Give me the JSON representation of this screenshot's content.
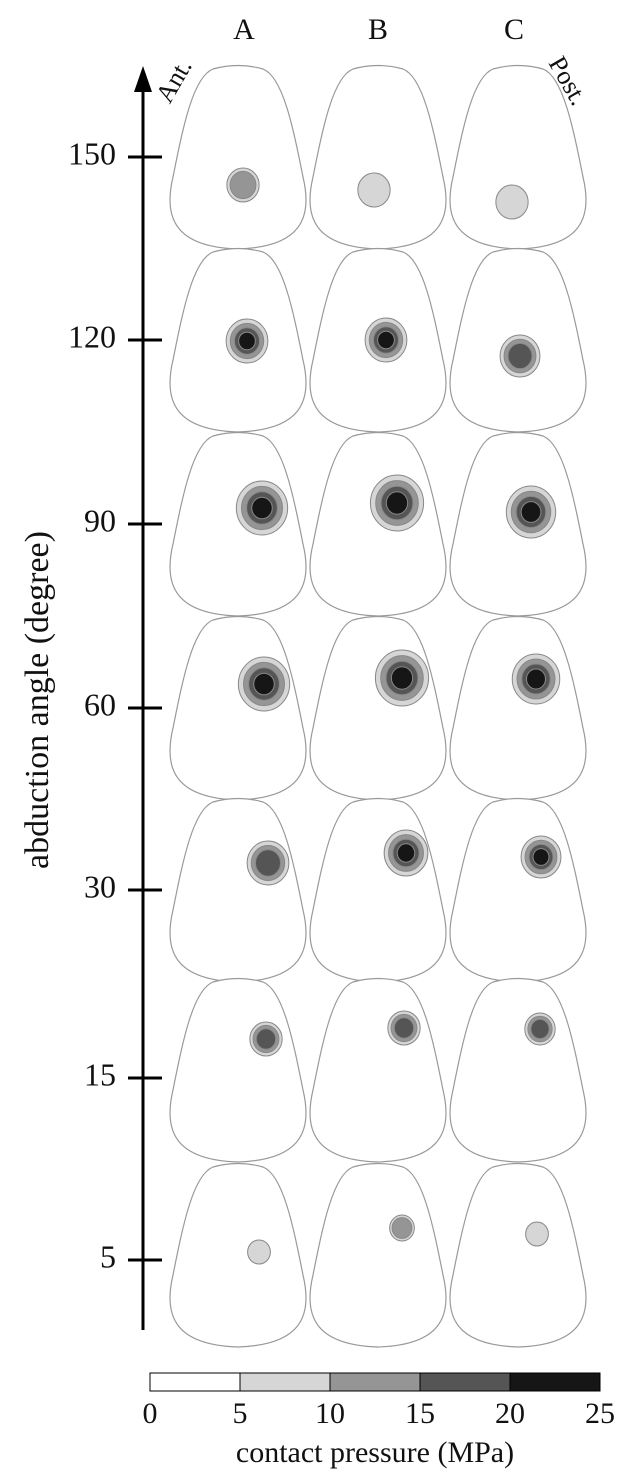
{
  "columns": [
    "A",
    "B",
    "C"
  ],
  "labels": {
    "anterior": "Ant.",
    "posterior": "Post."
  },
  "axis": {
    "title": "abduction angle (degree)",
    "ticks": [
      150,
      120,
      90,
      60,
      30,
      15,
      5
    ]
  },
  "colorbar": {
    "title": "contact pressure (MPa)",
    "ticks": [
      0,
      5,
      10,
      15,
      20,
      25
    ],
    "colors": [
      "#ffffff",
      "#d6d6d6",
      "#959595",
      "#555555",
      "#161616"
    ]
  }
}
